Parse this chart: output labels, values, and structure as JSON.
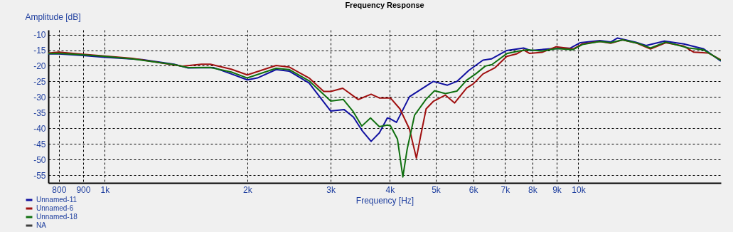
{
  "chart_data": {
    "type": "line",
    "title": "Frequency Response",
    "xlabel": "Frequency [Hz]",
    "ylabel": "Amplitude [dB]",
    "log": "x",
    "grid": true,
    "legend": "bottom left",
    "line_style": "solid",
    "marker": "none",
    "xlim": [
      760,
      20000
    ],
    "ylim": [
      -57.5,
      -8.5
    ],
    "xticks": [
      800,
      900,
      {
        "value": 1000,
        "label": "1k"
      },
      {
        "value": 2000,
        "label": "2k"
      },
      {
        "value": 3000,
        "label": "3k"
      },
      {
        "value": 4000,
        "label": "4k"
      },
      {
        "value": 5000,
        "label": "5k"
      },
      {
        "value": 6000,
        "label": "6k"
      },
      {
        "value": 7000,
        "label": "7k"
      },
      {
        "value": 8000,
        "label": "8k"
      },
      {
        "value": 9000,
        "label": "9k"
      },
      {
        "value": 10000,
        "label": "10k"
      }
    ],
    "yticks": [
      -10,
      -15,
      -20,
      -25,
      -30,
      -35,
      -40,
      -45,
      -50,
      -55
    ],
    "series": [
      {
        "name": "Unnamed-11",
        "color": "#1010a0",
        "x": [
          760,
          800,
          900,
          1000,
          1200,
          1400,
          1500,
          1700,
          1850,
          2000,
          2100,
          2300,
          2450,
          2700,
          3000,
          3200,
          3350,
          3500,
          3650,
          3800,
          3950,
          4010,
          4130,
          4400,
          4940,
          5290,
          5540,
          5870,
          6290,
          6550,
          7060,
          7660,
          7930,
          8660,
          9630,
          10100,
          11100,
          11700,
          12100,
          13200,
          13900,
          15200,
          16700,
          18400,
          20000
        ],
        "values": [
          -16.2,
          -16.2,
          -16.7,
          -17.3,
          -18.0,
          -19.5,
          -20.7,
          -20.6,
          -22.6,
          -24.5,
          -23.9,
          -21.2,
          -21.7,
          -25.5,
          -34.5,
          -34.0,
          -36.4,
          -40.9,
          -44.2,
          -41.5,
          -36.7,
          -37.0,
          -38.1,
          -29.9,
          -25.0,
          -26.2,
          -25.0,
          -21.5,
          -18.2,
          -17.8,
          -15.1,
          -14.3,
          -15.1,
          -14.6,
          -14.3,
          -12.6,
          -11.9,
          -12.4,
          -11.1,
          -12.4,
          -13.5,
          -12.1,
          -13.0,
          -14.6,
          -18.5
        ]
      },
      {
        "name": "Unnamed-6",
        "color": "#a01010",
        "x": [
          760,
          800,
          900,
          1000,
          1144,
          1400,
          1460,
          1600,
          1670,
          1850,
          2000,
          2300,
          2450,
          2700,
          2900,
          3000,
          3180,
          3430,
          3650,
          3800,
          4010,
          4200,
          4400,
          4550,
          4640,
          4770,
          4940,
          5240,
          5480,
          5810,
          6000,
          6290,
          6670,
          7060,
          7400,
          7660,
          7880,
          8380,
          8980,
          9750,
          10200,
          11100,
          11700,
          12400,
          13300,
          14200,
          15300,
          16700,
          17500,
          18800,
          20000
        ],
        "values": [
          -15.9,
          -15.6,
          -16.3,
          -16.9,
          -17.6,
          -19.7,
          -20.1,
          -19.5,
          -19.5,
          -21.1,
          -22.9,
          -19.9,
          -20.4,
          -23.9,
          -28.2,
          -28.2,
          -27.2,
          -30.8,
          -29.1,
          -30.3,
          -30.3,
          -33.8,
          -40.3,
          -49.6,
          -42.8,
          -33.8,
          -31.4,
          -29.4,
          -31.9,
          -27.1,
          -25.8,
          -22.6,
          -20.6,
          -17.0,
          -16.2,
          -14.9,
          -16.0,
          -15.7,
          -13.9,
          -14.6,
          -13.0,
          -12.2,
          -12.8,
          -11.7,
          -12.8,
          -14.6,
          -12.6,
          -13.7,
          -15.6,
          -15.9,
          -18.1
        ]
      },
      {
        "name": "Unnamed-18",
        "color": "#107010",
        "x": [
          760,
          800,
          900,
          1000,
          1144,
          1400,
          1500,
          1670,
          1850,
          2000,
          2300,
          2450,
          2700,
          3000,
          3190,
          3340,
          3490,
          3640,
          3800,
          3950,
          4010,
          4150,
          4260,
          4350,
          4510,
          4770,
          4970,
          5240,
          5540,
          5810,
          6070,
          6360,
          6570,
          7060,
          7480,
          7810,
          8380,
          8980,
          9750,
          10200,
          11100,
          11700,
          12400,
          13300,
          14200,
          15300,
          17100,
          18400,
          20000
        ],
        "values": [
          -16.1,
          -16.0,
          -16.5,
          -17.0,
          -17.8,
          -19.6,
          -20.6,
          -20.5,
          -22.0,
          -23.9,
          -20.8,
          -21.2,
          -24.8,
          -31.3,
          -30.8,
          -34.5,
          -39.3,
          -36.7,
          -39.5,
          -39.0,
          -39.2,
          -43.5,
          -55.6,
          -46.7,
          -35.8,
          -30.7,
          -28.0,
          -28.9,
          -28.1,
          -24.6,
          -22.6,
          -20.1,
          -19.6,
          -16.1,
          -15.3,
          -14.9,
          -15.3,
          -14.5,
          -14.8,
          -13.2,
          -12.2,
          -12.6,
          -11.7,
          -12.7,
          -14.3,
          -12.4,
          -14.3,
          -14.9,
          -18.3
        ]
      },
      {
        "name": "NA",
        "color": "#404040"
      }
    ]
  }
}
